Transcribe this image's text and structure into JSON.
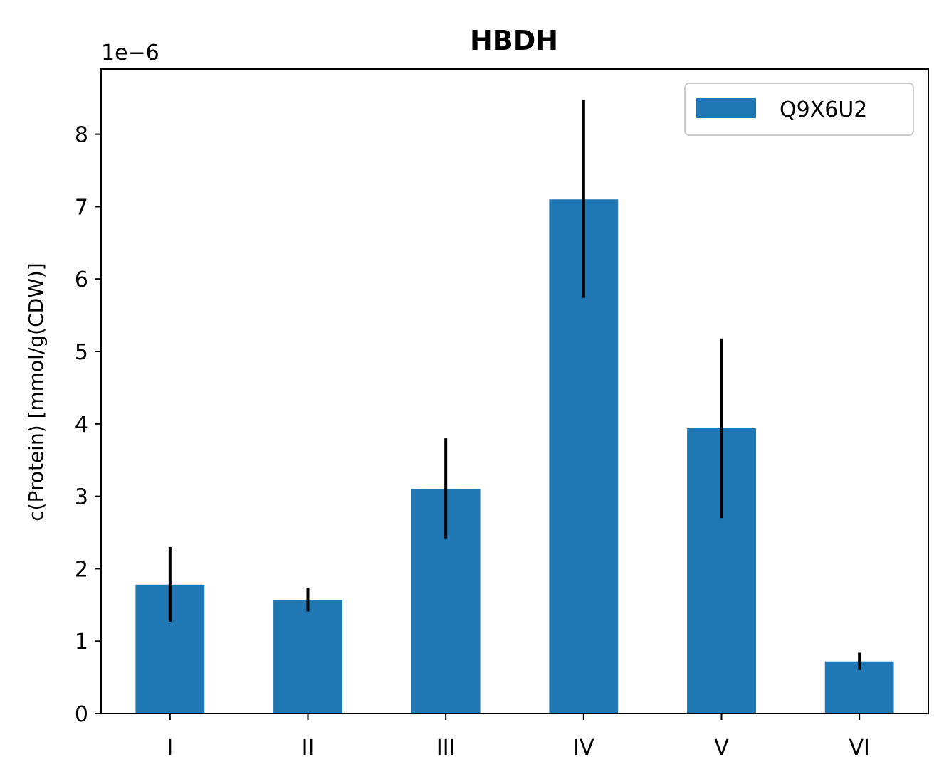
{
  "chart_data": {
    "type": "bar",
    "title": "HBDH",
    "xlabel": "",
    "ylabel": "c(Protein) [mmol/g(CDW)]",
    "y_offset_label": "1e−6",
    "ylim": [
      0,
      8.9
    ],
    "yticks": [
      "0",
      "1",
      "2",
      "3",
      "4",
      "5",
      "6",
      "7",
      "8"
    ],
    "categories": [
      "I",
      "II",
      "III",
      "IV",
      "V",
      "VI"
    ],
    "series": [
      {
        "name": "Q9X6U2",
        "color": "#1f77b4",
        "values": [
          1.78,
          1.57,
          3.1,
          7.1,
          3.94,
          0.72
        ],
        "err_low": [
          1.27,
          1.41,
          2.42,
          5.74,
          2.7,
          0.6
        ],
        "err_high": [
          2.3,
          1.74,
          3.8,
          8.47,
          5.18,
          0.84
        ]
      }
    ],
    "legend_position": "upper right",
    "grid": false
  }
}
